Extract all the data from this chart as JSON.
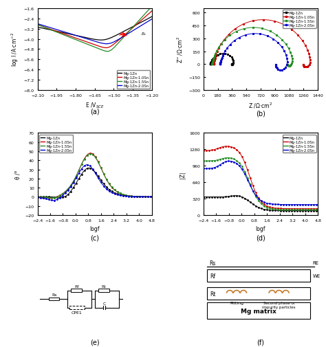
{
  "title_a": "(a)",
  "title_b": "(b)",
  "title_c": "(c)",
  "title_d": "(d)",
  "title_e": "(e)",
  "title_f": "(f)",
  "colors": [
    "#000000",
    "#cc0000",
    "#228B22",
    "#0000cc"
  ],
  "legend_labels": [
    "Mg-1Zn",
    "Mg-1Zn-1.0Sn",
    "Mg-1Zn-1.5Sn",
    "Mg-1Zn-2.0Sn"
  ],
  "panel_a": {
    "xlabel": "E /V$_{SCE}$",
    "ylabel": "log I /A·cm$^{-2}$",
    "xlim": [
      -2.1,
      -1.2
    ],
    "ylim": [
      -8.0,
      -1.6
    ],
    "xticks": [
      -2.1,
      -1.95,
      -1.8,
      -1.65,
      -1.5,
      -1.35,
      -1.2
    ],
    "yticks": [
      -8.0,
      -7.2,
      -6.4,
      -5.6,
      -4.8,
      -4.0,
      -3.2,
      -2.4,
      -1.6
    ]
  },
  "panel_b": {
    "xlabel": "Z /Ω·cm$^2$",
    "ylabel": "Z'' /Ω·cm$^2$",
    "xlim": [
      0,
      1440
    ],
    "ylim": [
      -300,
      650
    ],
    "xticks": [
      0,
      180,
      360,
      540,
      720,
      900,
      1080,
      1260,
      1440
    ],
    "yticks": [
      -300,
      -150,
      0,
      150,
      300,
      450,
      600
    ]
  },
  "panel_c": {
    "xlabel": "logf",
    "ylabel": "θ /°",
    "xlim": [
      -2.4,
      4.8
    ],
    "ylim": [
      -20,
      70
    ],
    "xticks": [
      -2.4,
      -1.6,
      -0.8,
      0.0,
      0.8,
      1.6,
      2.4,
      3.2,
      4.0,
      4.8
    ],
    "yticks": [
      -20,
      -10,
      0,
      10,
      20,
      30,
      40,
      50,
      60,
      70
    ]
  },
  "panel_d": {
    "xlabel": "logf",
    "ylabel": "|Z|",
    "xlim": [
      -2.4,
      4.8
    ],
    "ylim": [
      0,
      1600
    ],
    "xticks": [
      -2.4,
      -1.6,
      -0.8,
      0.0,
      0.8,
      1.6,
      2.4,
      3.2,
      4.0,
      4.8
    ],
    "yticks": [
      0,
      320,
      640,
      960,
      1280,
      1600
    ]
  }
}
